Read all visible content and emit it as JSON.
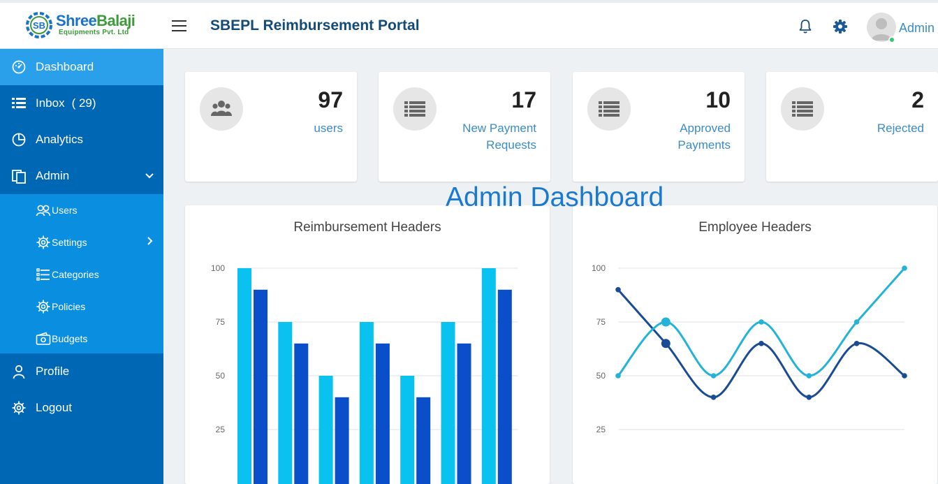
{
  "header": {
    "logo_word_1": "Shree",
    "logo_word_2": "Balaji",
    "logo_subtitle": "Equipments Pvt. Ltd",
    "title": "SBEPL Reimbursement Portal",
    "user_name": "Admin"
  },
  "sidebar": {
    "items": [
      {
        "label": "Dashboard",
        "icon": "dashboard-gauge-icon",
        "active": true
      },
      {
        "label": "Inbox",
        "count": "( 29)",
        "icon": "list-icon"
      },
      {
        "label": "Analytics",
        "icon": "pie-chart-icon"
      },
      {
        "label": "Admin",
        "icon": "copy-window-icon",
        "expanded": true
      }
    ],
    "admin_sub": [
      {
        "label": "Users",
        "icon": "users-icon"
      },
      {
        "label": "Settings",
        "icon": "gear-icon",
        "has_children": true
      },
      {
        "label": "Categories",
        "icon": "category-list-icon"
      },
      {
        "label": "Policies",
        "icon": "gear-icon"
      },
      {
        "label": "Budgets",
        "icon": "wallet-icon"
      }
    ],
    "bottom_items": [
      {
        "label": "Profile",
        "icon": "person-icon"
      },
      {
        "label": "Logout",
        "icon": "gear-icon"
      }
    ]
  },
  "stats": [
    {
      "value": "97",
      "caption": "users",
      "icon": "users-group-icon"
    },
    {
      "value": "17",
      "caption_line1": "New Payment",
      "caption_line2": "Requests",
      "icon": "list-icon"
    },
    {
      "value": "10",
      "caption_line1": "Approved",
      "caption_line2": "Payments",
      "icon": "list-icon"
    },
    {
      "value": "2",
      "caption": "Rejected",
      "icon": "list-icon"
    }
  ],
  "page_heading": "Admin Dashboard",
  "colors": {
    "sidebar": "#0067b4",
    "sidebar_active": "#2aa0ea",
    "submenu": "#0a8fe0",
    "series_light": "#0ac2f0",
    "series_dark": "#0a4fc9",
    "line_light": "#22b3d6",
    "line_dark": "#1a4b95"
  },
  "chart_data": [
    {
      "type": "bar",
      "title": "Reimbursement Headers",
      "ylim": [
        0,
        100
      ],
      "yticks": [
        25,
        50,
        75,
        100
      ],
      "grid": true,
      "series": [
        {
          "values": [
            100,
            75,
            50,
            75,
            50,
            75,
            100
          ]
        },
        {
          "values": [
            90,
            65,
            40,
            65,
            40,
            65,
            90
          ]
        }
      ]
    },
    {
      "type": "line",
      "title": "Employee Headers",
      "ylim": [
        0,
        100
      ],
      "yticks": [
        25,
        50,
        75,
        100
      ],
      "grid": true,
      "series": [
        {
          "values": [
            50,
            75,
            50,
            75,
            50,
            75,
            100
          ]
        },
        {
          "values": [
            90,
            65,
            40,
            65,
            40,
            65,
            50
          ]
        }
      ]
    }
  ]
}
